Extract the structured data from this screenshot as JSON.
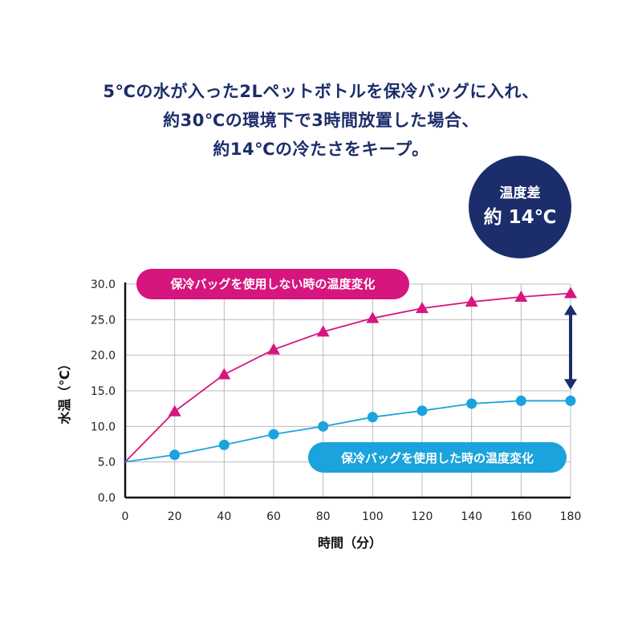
{
  "headline": {
    "lines": [
      "5℃の水が入った2Lペットボトルを保冷バッグに入れ、",
      "約30℃の環境下で3時間放置した場合、",
      "約14℃の冷たさをキープ。"
    ]
  },
  "badge": {
    "label": "温度差",
    "value": "約 14℃"
  },
  "colors": {
    "navy": "#1c2d6b",
    "without_bag": "#d6157e",
    "with_bag": "#1aa3dc",
    "grid": "#bbbbbb"
  },
  "chart_data": {
    "type": "line",
    "xlabel": "時間（分）",
    "ylabel": "水温（℃）",
    "xlim": [
      0,
      180
    ],
    "ylim": [
      0,
      30
    ],
    "x_ticks": [
      "0",
      "20",
      "40",
      "60",
      "80",
      "100",
      "120",
      "140",
      "160",
      "180"
    ],
    "y_ticks": [
      "0.0",
      "5.0",
      "10.0",
      "15.0",
      "20.0",
      "25.0",
      "30.0"
    ],
    "grid": true,
    "series": [
      {
        "name": "保冷バッグを使用しない時の温度変化",
        "marker": "triangle",
        "color": "#d6157e",
        "x": [
          0,
          20,
          40,
          60,
          80,
          100,
          120,
          140,
          160,
          180
        ],
        "y": [
          5.0,
          12.1,
          17.3,
          20.8,
          23.3,
          25.2,
          26.6,
          27.5,
          28.2,
          28.7
        ]
      },
      {
        "name": "保冷バッグを使用した時の温度変化",
        "marker": "circle",
        "color": "#1aa3dc",
        "x": [
          0,
          20,
          40,
          60,
          80,
          100,
          120,
          140,
          160,
          180
        ],
        "y": [
          5.0,
          6.0,
          7.4,
          8.9,
          10.0,
          11.3,
          12.2,
          13.2,
          13.6,
          13.6
        ]
      }
    ],
    "annotation": {
      "type": "double-arrow",
      "x": 180,
      "y_from": 13.6,
      "y_to": 28.7,
      "color": "#1c2d6b"
    }
  }
}
